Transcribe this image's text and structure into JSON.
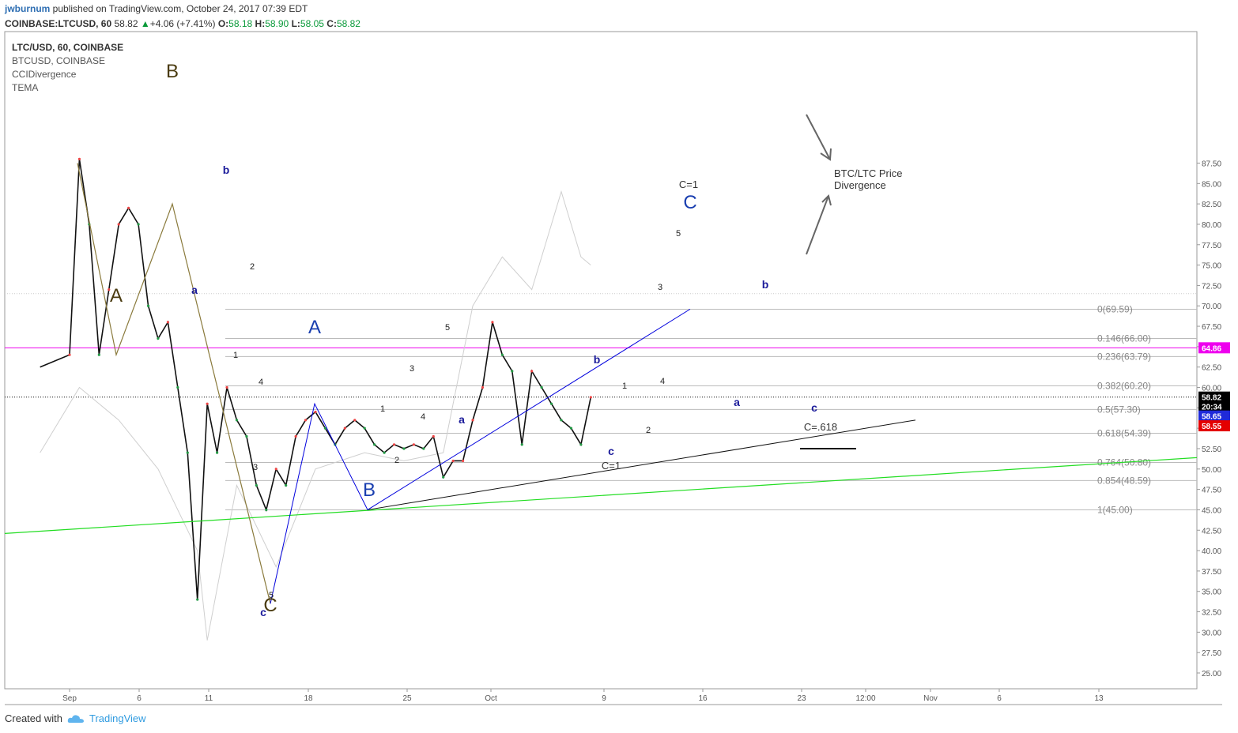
{
  "header": {
    "author": "jwburnum",
    "published": "published on TradingView.com, October 24, 2017 07:39 EDT"
  },
  "ohlc": {
    "symbol": "COINBASE:LTCUSD, 60",
    "last": "58.82",
    "change": "+4.06 (+7.41%)",
    "o_label": "O:",
    "o": "58.18",
    "h_label": "H:",
    "h": "58.90",
    "l_label": "L:",
    "l": "58.05",
    "c_label": "C:",
    "c": "58.82"
  },
  "legend": {
    "main": "LTC/USD, 60, COINBASE",
    "compare": "BTCUSD, COINBASE",
    "ind1": "CCIDivergence",
    "ind2": "TEMA"
  },
  "footer": {
    "created": "Created with",
    "brand": "TradingView"
  },
  "colors": {
    "wave_brown": "#8a7a3c",
    "wave_blue": "#0000dd",
    "trend_green": "#22dd22",
    "resistance_magenta": "#ee00ee",
    "fib_gray": "#bbbbbb",
    "candle_up": "#ee4444",
    "candle_down": "#229944",
    "axis_text": "#555555"
  },
  "chart_data": {
    "type": "line",
    "series": [
      {
        "x": [
          "Aug 30",
          "Sep 1",
          "Sep 2",
          "Sep 3",
          "Sep 4",
          "Sep 5",
          "Sep 6",
          "Sep 7",
          "Sep 8",
          "Sep 9",
          "Sep 10",
          "Sep 11",
          "Sep 12",
          "Sep 13",
          "Sep 14",
          "Sep 15",
          "Sep 16",
          "Sep 17",
          "Sep 18",
          "Sep 19",
          "Sep 20",
          "Sep 21",
          "Sep 22",
          "Sep 23",
          "Sep 24",
          "Sep 25",
          "Sep 26",
          "Sep 27",
          "Sep 28",
          "Sep 29",
          "Sep 30",
          "Oct 1",
          "Oct 2",
          "Oct 3",
          "Oct 4",
          "Oct 5",
          "Oct 6",
          "Oct 7",
          "Oct 8",
          "Oct 9",
          "Oct 10",
          "Oct 11",
          "Oct 12",
          "Oct 13",
          "Oct 14",
          "Oct 15",
          "Oct 16",
          "Oct 17",
          "Oct 18",
          "Oct 19",
          "Oct 20",
          "Oct 21",
          "Oct 22",
          "Oct 23",
          "Oct 24"
        ],
        "values": [
          62.5,
          64,
          88,
          80,
          64,
          72,
          80,
          82,
          80,
          70,
          66,
          68,
          60,
          52,
          34,
          58,
          52,
          60,
          56,
          54,
          48,
          45,
          50,
          48,
          54,
          56,
          57,
          55,
          53,
          55,
          56,
          55,
          53,
          52,
          53,
          52.5,
          53,
          52.5,
          54,
          49,
          51,
          51,
          56,
          60,
          68,
          64,
          62,
          53,
          62,
          60,
          58,
          56,
          55,
          53,
          58.8
        ]
      },
      {
        "x": [
          "Aug 30",
          "Sep 2",
          "Sep 6",
          "Sep 10",
          "Sep 14",
          "Sep 15",
          "Sep 18",
          "Sep 22",
          "Sep 26",
          "Oct 1",
          "Oct 5",
          "Oct 9",
          "Oct 12",
          "Oct 15",
          "Oct 18",
          "Oct 20",
          "Oct 21",
          "Oct 23",
          "Oct 24"
        ],
        "values": [
          52,
          60,
          56,
          50,
          40,
          29,
          48,
          38,
          50,
          52,
          51,
          52,
          70,
          76,
          72,
          80,
          84,
          76,
          75
        ]
      }
    ],
    "xticks": [
      "Sep",
      "6",
      "11",
      "18",
      "25",
      "Oct",
      "9",
      "16",
      "23",
      "12:00",
      "Nov",
      "6",
      "13"
    ],
    "yticks": [
      "87.50",
      "85.00",
      "82.50",
      "80.00",
      "77.50",
      "75.00",
      "72.50",
      "70.00",
      "67.50",
      "65.00",
      "62.50",
      "60.00",
      "57.50",
      "55.00",
      "52.50",
      "50.00",
      "47.50",
      "45.00",
      "42.50",
      "40.00",
      "37.50",
      "35.00",
      "32.50",
      "30.00",
      "27.50",
      "25.00"
    ],
    "ylim": [
      23.5,
      88
    ],
    "grid": false,
    "price_labels": [
      "64.86",
      "58.82",
      "20:34",
      "58.65",
      "58.55"
    ],
    "fib_labels": [
      "0(69.59)",
      "0.146(66.00)",
      "0.236(63.79)",
      "0.382(60.20)",
      "0.5(57.30)",
      "0.618(54.39)",
      "0.764(50.80)",
      "0.854(48.59)",
      "1(45.00)"
    ],
    "wave_labels_big": [
      "A",
      "B",
      "C",
      "A",
      "B",
      "C"
    ],
    "wave_labels_small": [
      "b",
      "a",
      "c",
      "b",
      "a",
      "c",
      "b",
      "a",
      "c"
    ],
    "count_labels": [
      "1",
      "2",
      "3",
      "4",
      "5",
      "1",
      "2",
      "3",
      "4",
      "5",
      "1",
      "2",
      "3",
      "4",
      "5"
    ],
    "annotations": [
      "C=1",
      "C=1",
      "C=.618",
      "BTC/LTC Price",
      "Divergence"
    ]
  }
}
